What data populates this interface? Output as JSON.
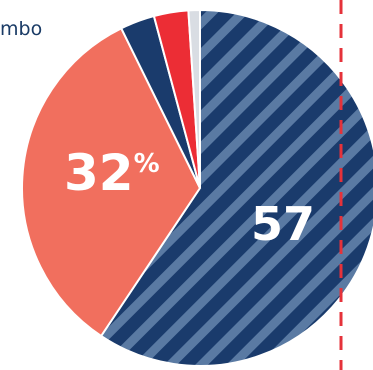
{
  "legend_fragment": "mbo",
  "colors": {
    "navy": "#1a3b6c",
    "stripe": "#5a7aa3",
    "coral": "#f16f5e",
    "red": "#ec2d35",
    "light": "#d9dde3",
    "dashed_line": "#e5323a"
  },
  "chart_data": {
    "type": "pie",
    "slices": [
      {
        "value": 57,
        "color": "#1a3b6c",
        "pattern": "diagonal-stripes",
        "label": "57"
      },
      {
        "value": 32,
        "color": "#f16f5e",
        "label": "32",
        "label_suffix": "%"
      },
      {
        "value": 3,
        "color": "#1a3b6c"
      },
      {
        "value": 3,
        "color": "#ec2d35"
      },
      {
        "value": 1,
        "color": "#d9dde3"
      }
    ],
    "start": "top",
    "direction": "clockwise"
  },
  "labels": {
    "main": "57",
    "second": "32",
    "second_suffix": "%"
  }
}
